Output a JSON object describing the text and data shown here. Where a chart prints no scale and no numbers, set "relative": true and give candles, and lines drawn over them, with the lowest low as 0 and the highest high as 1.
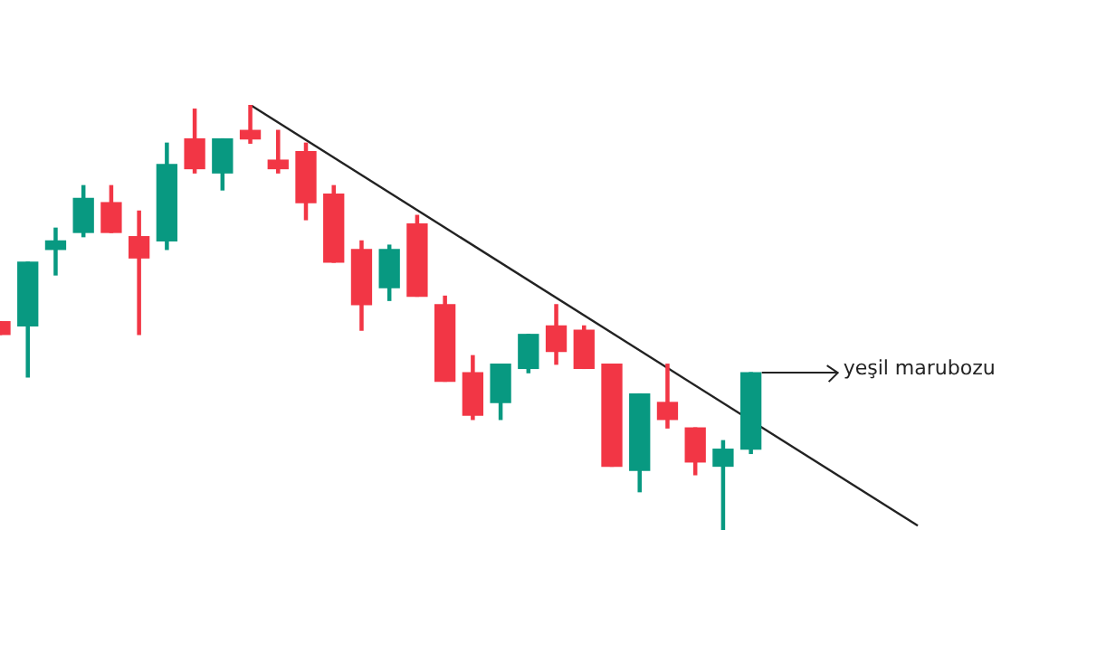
{
  "chart_data": {
    "type": "candlestick",
    "relative": true,
    "categories": [
      null,
      null,
      null,
      null,
      null,
      null,
      null,
      null,
      null,
      null,
      null,
      null,
      null,
      null,
      null,
      null,
      null,
      null,
      null,
      null,
      null,
      null,
      null,
      null,
      null,
      null,
      null,
      null,
      null,
      null,
      null,
      null,
      null,
      null
    ],
    "ohlc": [
      [
        0.49,
        0.49,
        0.46,
        0.46
      ],
      [
        0.48,
        0.63,
        0.36,
        0.63
      ],
      [
        0.66,
        0.71,
        0.6,
        0.68
      ],
      [
        0.7,
        0.81,
        0.69,
        0.78
      ],
      [
        0.77,
        0.81,
        0.7,
        0.7
      ],
      [
        0.69,
        0.75,
        0.46,
        0.64
      ],
      [
        0.68,
        0.91,
        0.66,
        0.86
      ],
      [
        0.92,
        0.99,
        0.84,
        0.85
      ],
      [
        0.84,
        0.92,
        0.8,
        0.92
      ],
      [
        0.94,
        1,
        0.91,
        0.92
      ],
      [
        0.87,
        0.94,
        0.84,
        0.85
      ],
      [
        0.89,
        0.91,
        0.73,
        0.77
      ],
      [
        0.79,
        0.81,
        0.63,
        0.63
      ],
      [
        0.66,
        0.68,
        0.47,
        0.53
      ],
      [
        0.57,
        0.67,
        0.54,
        0.66
      ],
      [
        0.72,
        0.74,
        0.55,
        0.55
      ],
      [
        0.53,
        0.55,
        0.35,
        0.35
      ],
      [
        0.37,
        0.41,
        0.26,
        0.27
      ],
      [
        0.3,
        0.39,
        0.26,
        0.39
      ],
      [
        0.38,
        0.46,
        0.37,
        0.46
      ],
      [
        0.48,
        0.53,
        0.39,
        0.42
      ],
      [
        0.47,
        0.48,
        0.38,
        0.38
      ],
      [
        0.39,
        0.39,
        0.15,
        0.15
      ],
      [
        0.14,
        0.32,
        0.09,
        0.32
      ],
      [
        0.3,
        0.39,
        0.24,
        0.26
      ],
      [
        0.24,
        0.24,
        0.13,
        0.16
      ],
      [
        0.15,
        0.21,
        0,
        0.19
      ],
      [
        0.19,
        0.37,
        0.18,
        0.37
      ],
      null,
      null,
      null,
      null,
      null,
      null
    ],
    "series": [
      {
        "type": "line",
        "color": "#222222",
        "values": [
          null,
          null,
          null,
          null,
          null,
          null,
          null,
          null,
          null,
          1,
          null,
          null,
          null,
          null,
          null,
          null,
          null,
          null,
          null,
          null,
          null,
          null,
          null,
          null,
          null,
          null,
          null,
          null,
          null,
          null,
          null,
          null,
          null,
          0.01
        ]
      }
    ],
    "annotations": [
      "yeşil marubozu"
    ]
  }
}
